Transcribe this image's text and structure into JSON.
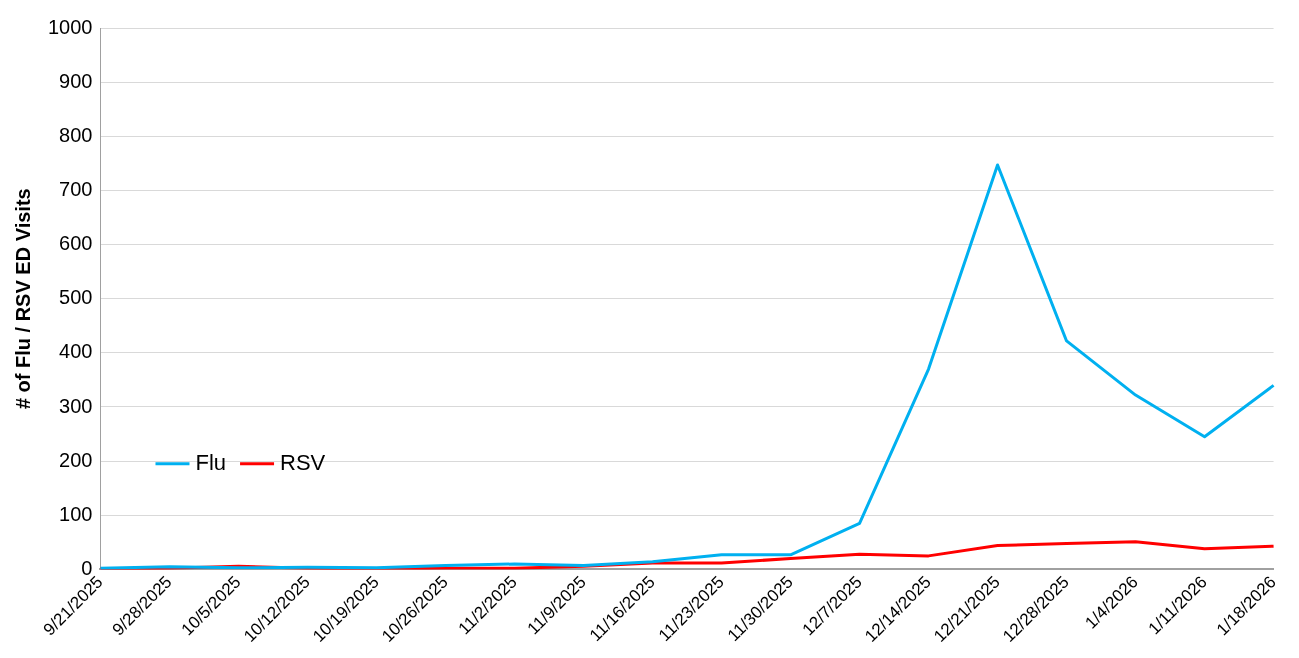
{
  "chart_data": {
    "type": "line",
    "ylabel": "# of Flu / RSV ED Visits",
    "categories": [
      "9/21/2025",
      "9/28/2025",
      "10/5/2025",
      "10/12/2025",
      "10/19/2025",
      "10/26/2025",
      "11/2/2025",
      "11/9/2025",
      "11/16/2025",
      "11/23/2025",
      "11/30/2025",
      "12/7/2025",
      "12/14/2025",
      "12/21/2025",
      "12/28/2025",
      "1/4/2026",
      "1/11/2026",
      "1/18/2026"
    ],
    "series": [
      {
        "name": "Flu",
        "color": "#00b0f0",
        "values": [
          2,
          5,
          3,
          4,
          3,
          7,
          10,
          7,
          14,
          27,
          27,
          85,
          370,
          747,
          422,
          322,
          245,
          340
        ]
      },
      {
        "name": "RSV",
        "color": "#ff0000",
        "values": [
          1,
          2,
          6,
          2,
          1,
          2,
          2,
          6,
          12,
          12,
          20,
          28,
          25,
          44,
          48,
          51,
          38,
          43
        ]
      }
    ],
    "ylim": [
      0,
      1000
    ],
    "yticks": [
      0,
      100,
      200,
      300,
      400,
      500,
      600,
      700,
      800,
      900,
      1000
    ],
    "grid": "y",
    "legend": "left",
    "marker": "none",
    "line_style": "solid"
  }
}
